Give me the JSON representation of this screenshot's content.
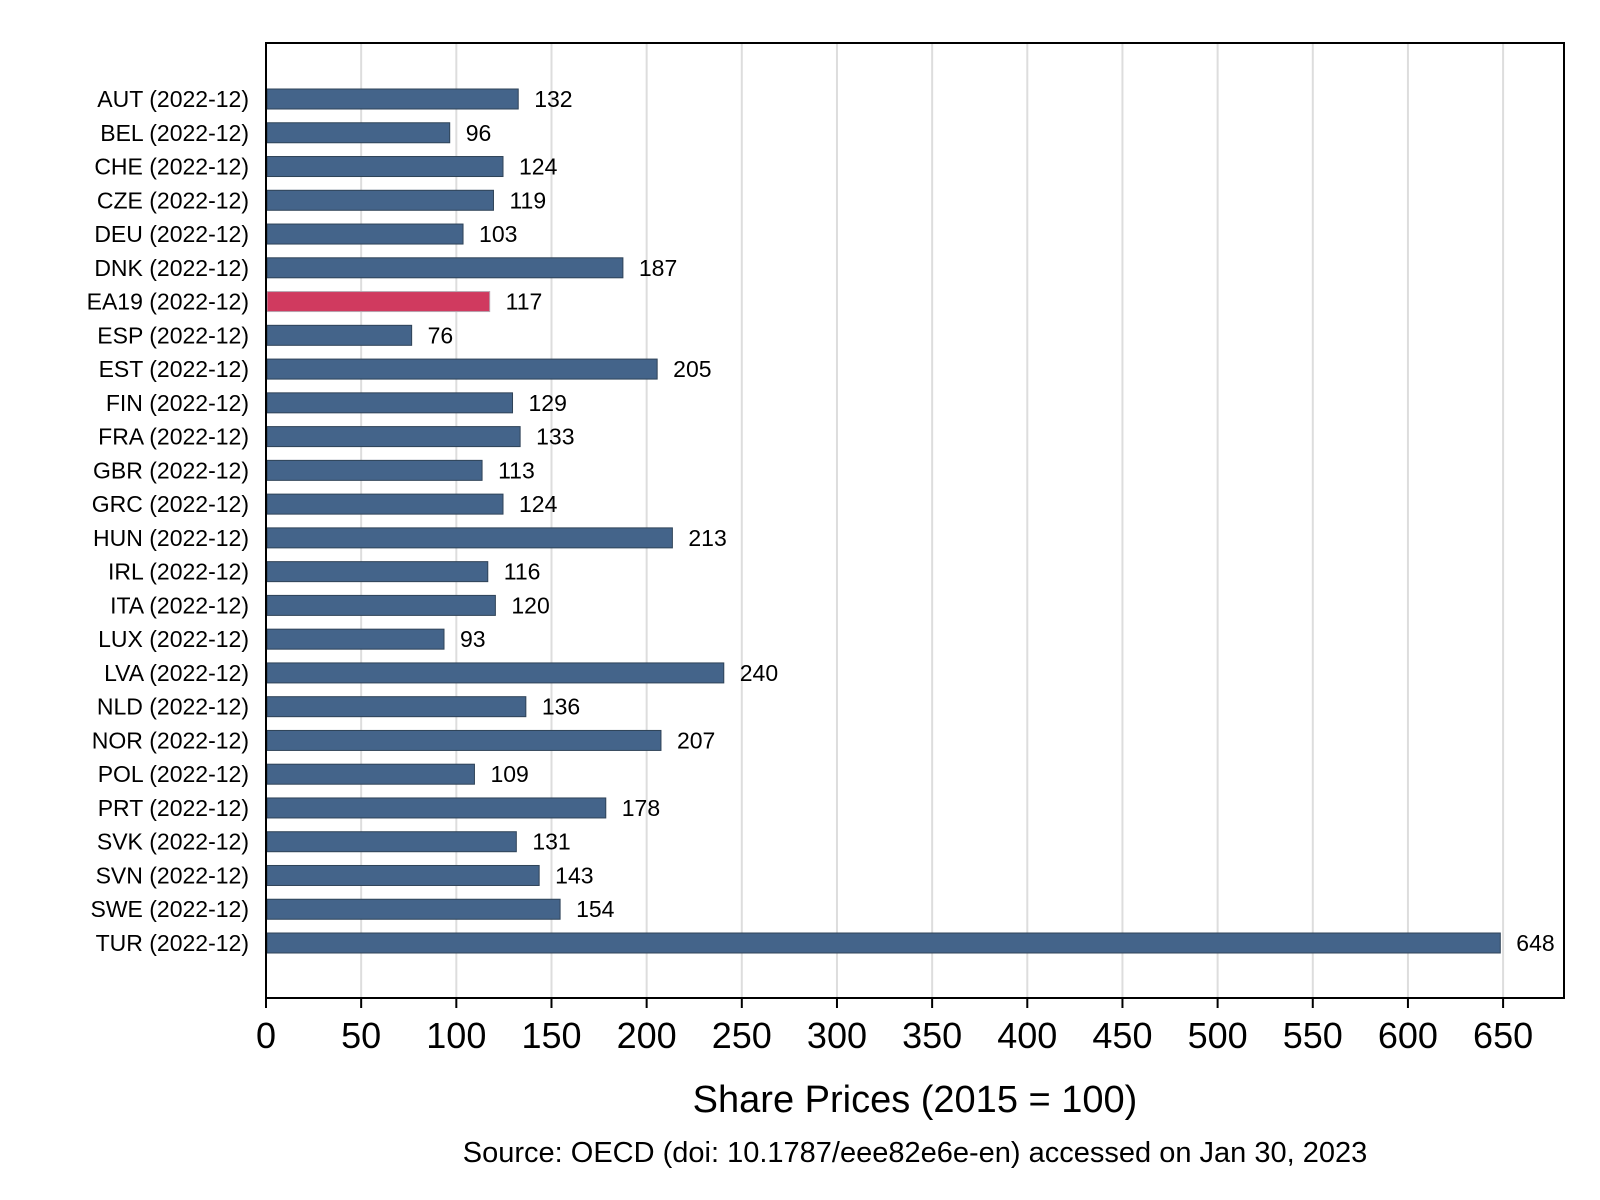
{
  "chart_data": {
    "type": "bar",
    "orientation": "horizontal",
    "categories": [
      "AUT (2022-12)",
      "BEL (2022-12)",
      "CHE (2022-12)",
      "CZE (2022-12)",
      "DEU (2022-12)",
      "DNK (2022-12)",
      "EA19 (2022-12)",
      "ESP (2022-12)",
      "EST (2022-12)",
      "FIN (2022-12)",
      "FRA (2022-12)",
      "GBR (2022-12)",
      "GRC (2022-12)",
      "HUN (2022-12)",
      "IRL (2022-12)",
      "ITA (2022-12)",
      "LUX (2022-12)",
      "LVA (2022-12)",
      "NLD (2022-12)",
      "NOR (2022-12)",
      "POL (2022-12)",
      "PRT (2022-12)",
      "SVK (2022-12)",
      "SVN (2022-12)",
      "SWE (2022-12)",
      "TUR (2022-12)"
    ],
    "values": [
      132,
      96,
      124,
      119,
      103,
      187,
      117,
      76,
      205,
      129,
      133,
      113,
      124,
      213,
      116,
      120,
      93,
      240,
      136,
      207,
      109,
      178,
      131,
      143,
      154,
      648
    ],
    "value_labels": [
      "132",
      "96",
      "124",
      "119",
      "103",
      "187",
      "117",
      "76",
      "205",
      "129",
      "133",
      "113",
      "124",
      "213",
      "116",
      "120",
      "93",
      "240",
      "136",
      "207",
      "109",
      "178",
      "131",
      "143",
      "154",
      "648"
    ],
    "highlight_category": "EA19 (2022-12)",
    "xlabel": "Share Prices (2015 = 100)",
    "ylabel": "",
    "xlim": [
      0,
      682
    ],
    "xticks": [
      0,
      50,
      100,
      150,
      200,
      250,
      300,
      350,
      400,
      450,
      500,
      550,
      600,
      650
    ],
    "xtick_labels": [
      "0",
      "50",
      "100",
      "150",
      "200",
      "250",
      "300",
      "350",
      "400",
      "450",
      "500",
      "550",
      "600",
      "650"
    ],
    "grid": "vertical",
    "legend": "none",
    "note": "Source: OECD (doi: 10.1787/eee82e6e-en) accessed on Jan 30, 2023",
    "colors": {
      "bar": "#44648a",
      "highlight": "#d03a5f",
      "grid": "#dddddd",
      "axis": "#000000"
    }
  }
}
